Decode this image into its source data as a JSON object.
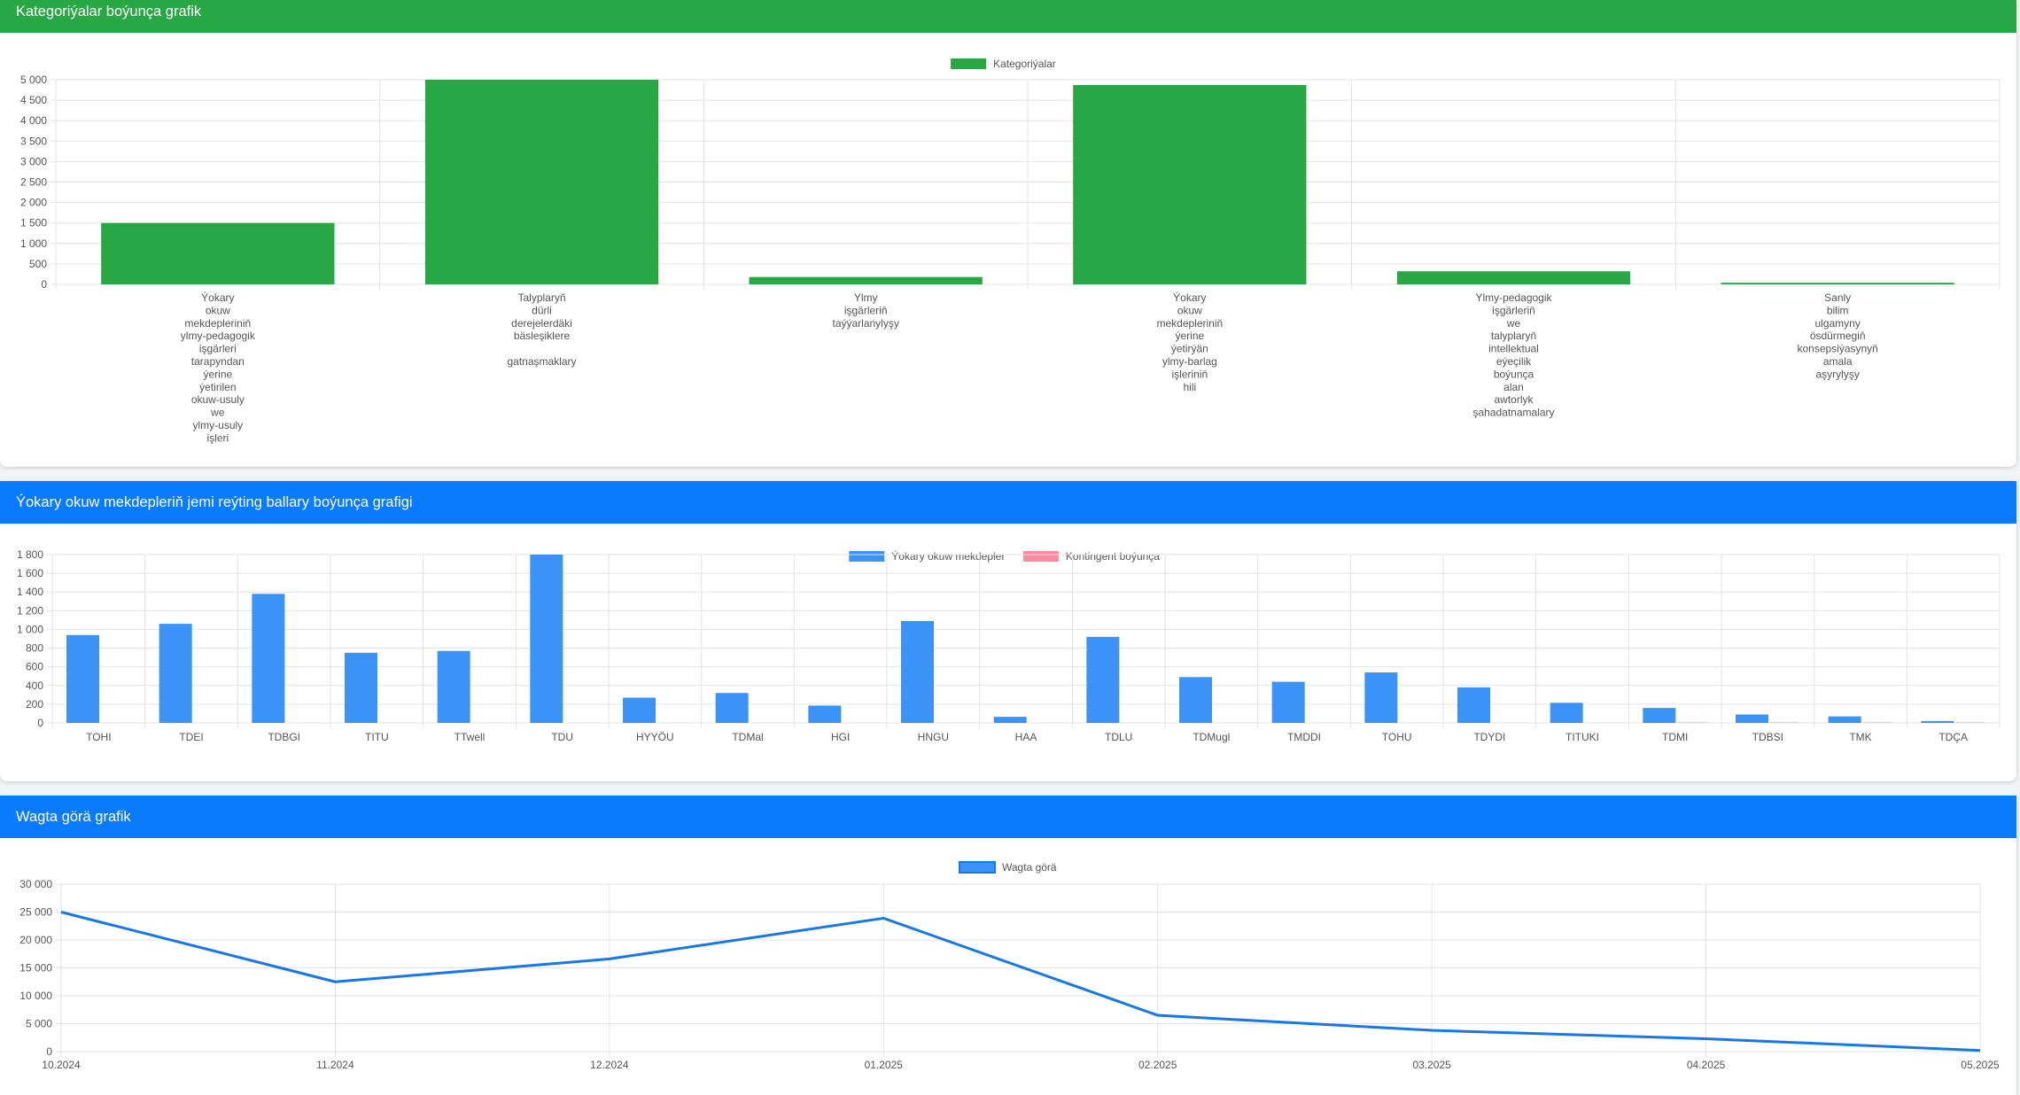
{
  "colors": {
    "green": "#28a745",
    "blue": "#3a93f5",
    "pink": "#ff8aa0",
    "line": "#1677e8",
    "header_blue": "#0a7bff"
  },
  "sections": [
    {
      "title": "Kategoriýalar boýunça grafik"
    },
    {
      "title": "Ýokary okuw mekdepleriň jemi reýting ballary boýunça grafigi"
    },
    {
      "title": "Wagta görä grafik"
    }
  ],
  "chart_data": [
    {
      "type": "bar",
      "legend": [
        "Kategoriýalar"
      ],
      "legend_position": "top-center",
      "grid": true,
      "ylim": [
        0,
        5000
      ],
      "yticks": [
        "0",
        "500",
        "1 000",
        "1 500",
        "2 000",
        "2 500",
        "3 000",
        "3 500",
        "4 000",
        "4 500",
        "5 000"
      ],
      "categories": [
        [
          "Ýokary",
          "okuw",
          "mekdepleriniň",
          "ylmy-pedagogik",
          "işgärleri",
          "tarapyndan",
          "ýerine",
          "ýetirilen",
          "okuw-usuly",
          "we",
          "ylmy-usuly",
          "işleri"
        ],
        [
          "Talyplaryň",
          "dürli",
          "derejelerdäki",
          "bäsleşiklere",
          "",
          "gatnaşmaklary"
        ],
        [
          "Ylmy",
          "işgärleriň",
          "taýýarlanylyşy"
        ],
        [
          "Ýokary",
          "okuw",
          "mekdepleriniň",
          "ýerine",
          "ýetirýän",
          "ylmy-barlag",
          "işleriniň",
          "hili"
        ],
        [
          "Ylmy-pedagogik",
          "işgärleriň",
          "we",
          "talyplaryň",
          "intellektual",
          "eýeçilik",
          "boýunça",
          "alan",
          "awtorlyk",
          "şahadatnamalary"
        ],
        [
          "Sanly",
          "bilim",
          "ulgamyny",
          "ösdürmegiň",
          "konsepsiýasynyň",
          "amala",
          "aşyrylyşy"
        ]
      ],
      "series": [
        {
          "name": "Kategoriýalar",
          "values": [
            1500,
            5000,
            180,
            4870,
            320,
            40
          ]
        }
      ]
    },
    {
      "type": "bar",
      "legend": [
        "Ýokary okuw mekdepler",
        "Kontingent boýunça"
      ],
      "legend_position": "top-center",
      "grid": true,
      "ylim": [
        0,
        1800
      ],
      "yticks": [
        "0",
        "200",
        "400",
        "600",
        "800",
        "1 000",
        "1 200",
        "1 400",
        "1 600",
        "1 800"
      ],
      "categories": [
        "TOHI",
        "TDEI",
        "TDBGI",
        "TITU",
        "TTwell",
        "TDU",
        "HYYÖU",
        "TDMal",
        "HGI",
        "HNGU",
        "HAA",
        "TDLU",
        "TDMugl",
        "TMDDI",
        "TOHU",
        "TDYDI",
        "TITUKI",
        "TDMI",
        "TDBSI",
        "TMK",
        "TDÇA"
      ],
      "series": [
        {
          "name": "Ýokary okuw mekdepler",
          "values": [
            940,
            1060,
            1380,
            750,
            770,
            1800,
            270,
            320,
            185,
            1090,
            65,
            920,
            490,
            440,
            540,
            380,
            215,
            160,
            90,
            70,
            20
          ]
        },
        {
          "name": "Kontingent boýunça",
          "values": [
            0,
            0,
            0,
            0,
            0,
            0,
            0,
            0,
            0,
            0,
            0,
            0,
            0,
            0,
            0,
            0,
            0,
            5,
            5,
            5,
            5
          ]
        }
      ]
    },
    {
      "type": "line",
      "legend": [
        "Wagta görä"
      ],
      "legend_position": "top-center",
      "grid": true,
      "ylim": [
        0,
        30000
      ],
      "yticks": [
        "0",
        "5 000",
        "10 000",
        "15 000",
        "20 000",
        "25 000",
        "30 000"
      ],
      "x": [
        "10.2024",
        "11.2024",
        "12.2024",
        "01.2025",
        "02.2025",
        "03.2025",
        "04.2025",
        "05.2025"
      ],
      "series": [
        {
          "name": "Wagta görä",
          "values": [
            25000,
            12500,
            16600,
            23900,
            6500,
            3800,
            2300,
            200
          ]
        }
      ]
    }
  ]
}
